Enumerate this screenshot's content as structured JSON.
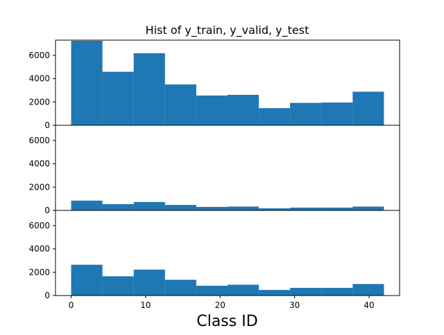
{
  "chart_data": {
    "type": "bar",
    "title": "Hist of y_train, y_valid, y_test",
    "xlabel": "Class ID",
    "ylabel": "",
    "shared_x": true,
    "sharey": true,
    "bar_color": "#1f77b4",
    "xlim": [
      -2.1,
      44.1
    ],
    "ylim": [
      0,
      7300
    ],
    "xticks": [
      0,
      10,
      20,
      30,
      40
    ],
    "yticks": [
      0,
      2000,
      4000,
      6000
    ],
    "bin_edges": [
      0,
      4.2,
      8.4,
      12.6,
      16.8,
      21.0,
      25.2,
      29.4,
      33.6,
      37.8,
      42.0
    ],
    "subplots": [
      {
        "name": "",
        "values": [
          7240,
          4590,
          6180,
          3500,
          2550,
          2610,
          1470,
          1920,
          1950,
          2880
        ]
      },
      {
        "name": "",
        "values": [
          840,
          540,
          720,
          470,
          300,
          330,
          180,
          240,
          240,
          330
        ]
      },
      {
        "name": "",
        "values": [
          2640,
          1650,
          2220,
          1350,
          840,
          930,
          480,
          660,
          660,
          990
        ]
      }
    ]
  }
}
